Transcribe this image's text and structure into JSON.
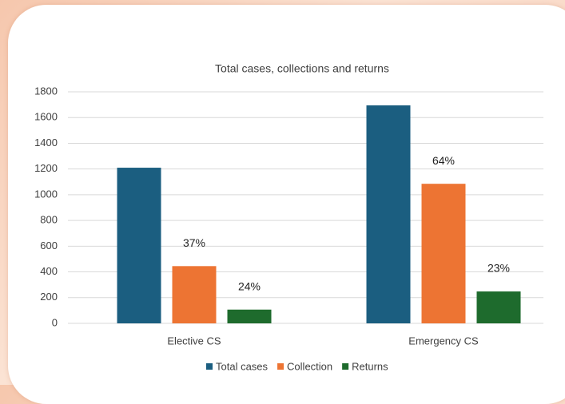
{
  "chart_data": {
    "type": "bar",
    "title": "Total cases, collections and returns",
    "categories": [
      "Elective CS",
      "Emergency CS"
    ],
    "series": [
      {
        "name": "Total cases",
        "color": "#1b5e80",
        "values": [
          1210,
          1695
        ]
      },
      {
        "name": "Collection",
        "color": "#ed7433",
        "values": [
          445,
          1085
        ],
        "annotations": [
          "37%",
          "64%"
        ]
      },
      {
        "name": "Returns",
        "color": "#1e6b2d",
        "values": [
          107,
          248
        ],
        "annotations": [
          "24%",
          "23%"
        ]
      }
    ],
    "ylim": [
      0,
      1800
    ],
    "yticks": [
      0,
      200,
      400,
      600,
      800,
      1000,
      1200,
      1400,
      1600,
      1800
    ],
    "grid": true,
    "legend": "bottom"
  }
}
